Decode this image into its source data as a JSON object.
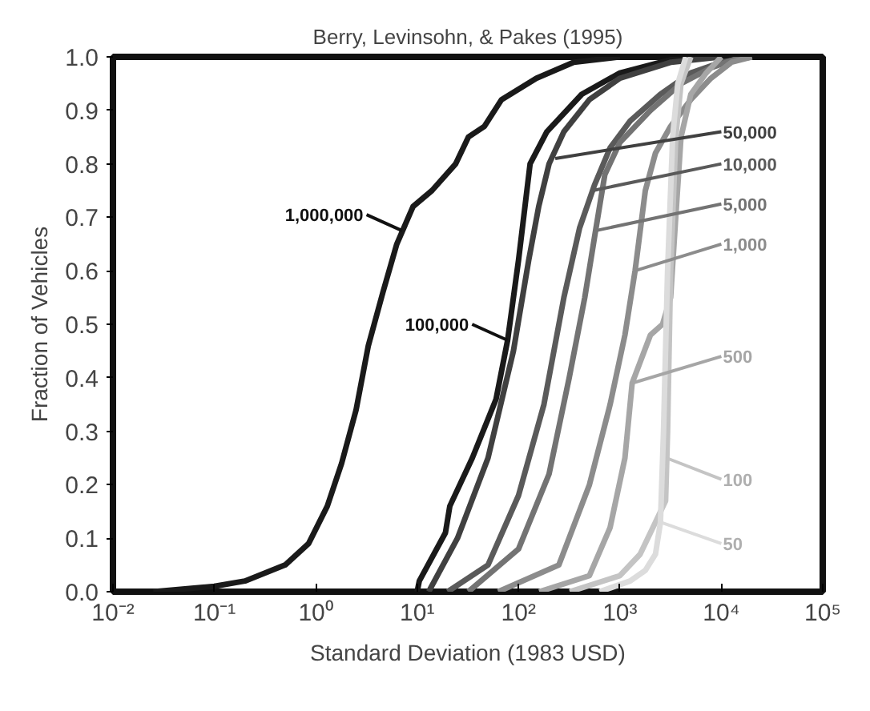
{
  "chart_data": {
    "type": "line",
    "title": "Berry, Levinsohn, & Pakes (1995)",
    "xlabel": "Standard Deviation (1983 USD)",
    "ylabel": "Fraction of Vehicles",
    "log": "x",
    "grid": false,
    "marker": "none",
    "line_style": "solid",
    "xlim": [
      0.01,
      100000
    ],
    "ylim": [
      0,
      1
    ],
    "xticks": [
      {
        "value": 0.01,
        "label": "10⁻²"
      },
      {
        "value": 0.1,
        "label": "10⁻¹"
      },
      {
        "value": 1,
        "label": "10⁰"
      },
      {
        "value": 10,
        "label": "10¹"
      },
      {
        "value": 100,
        "label": "10²"
      },
      {
        "value": 1000,
        "label": "10³"
      },
      {
        "value": 10000,
        "label": "10⁴"
      },
      {
        "value": 100000,
        "label": "10⁵"
      }
    ],
    "yticks": [
      {
        "value": 0,
        "label": "0.0"
      },
      {
        "value": 0.1,
        "label": "0.1"
      },
      {
        "value": 0.2,
        "label": "0.2"
      },
      {
        "value": 0.3,
        "label": "0.3"
      },
      {
        "value": 0.4,
        "label": "0.4"
      },
      {
        "value": 0.5,
        "label": "0.5"
      },
      {
        "value": 0.6,
        "label": "0.6"
      },
      {
        "value": 0.7,
        "label": "0.7"
      },
      {
        "value": 0.8,
        "label": "0.8"
      },
      {
        "value": 0.9,
        "label": "0.9"
      },
      {
        "value": 1,
        "label": "1.0"
      }
    ],
    "series": [
      {
        "color": "#1a1a1a",
        "x": [
          0.025,
          0.1,
          0.2,
          0.5,
          0.85,
          1.3,
          1.8,
          2.5,
          3.3,
          4.6,
          6.3,
          9.1,
          14,
          24,
          32,
          46,
          68,
          150,
          350,
          1000
        ],
        "values": [
          0,
          0.01,
          0.02,
          0.05,
          0.09,
          0.16,
          0.24,
          0.34,
          0.46,
          0.56,
          0.65,
          0.72,
          0.75,
          0.8,
          0.85,
          0.87,
          0.92,
          0.96,
          0.99,
          1.0
        ]
      },
      {
        "color": "#1a1a1a",
        "x": [
          10,
          10.5,
          19,
          21,
          35,
          60,
          78,
          100,
          130,
          190,
          420,
          1000,
          3200,
          9100
        ],
        "values": [
          0,
          0.02,
          0.11,
          0.16,
          0.25,
          0.36,
          0.47,
          0.62,
          0.8,
          0.86,
          0.93,
          0.97,
          0.995,
          1.0
        ]
      },
      {
        "color": "#404040",
        "x": [
          13,
          25,
          50,
          89,
          126,
          158,
          200,
          280,
          500,
          1000,
          3200,
          10000
        ],
        "values": [
          0,
          0.1,
          0.25,
          0.45,
          0.62,
          0.72,
          0.8,
          0.86,
          0.92,
          0.96,
          0.99,
          1.0
        ]
      },
      {
        "color": "#5a5a5a",
        "x": [
          20,
          50,
          100,
          178,
          280,
          400,
          560,
          800,
          1260,
          2500,
          5000,
          10000,
          20000
        ],
        "values": [
          0,
          0.05,
          0.18,
          0.35,
          0.55,
          0.68,
          0.76,
          0.83,
          0.88,
          0.93,
          0.97,
          0.99,
          1.0
        ]
      },
      {
        "color": "#737373",
        "x": [
          32,
          100,
          200,
          316,
          450,
          575,
          710,
          1000,
          2000,
          4000,
          8000,
          16000
        ],
        "values": [
          0,
          0.08,
          0.22,
          0.4,
          0.55,
          0.675,
          0.78,
          0.84,
          0.9,
          0.95,
          0.98,
          1.0
        ]
      },
      {
        "color": "#8c8c8c",
        "x": [
          63,
          250,
          500,
          800,
          1120,
          1410,
          1780,
          2240,
          3160,
          5000,
          7900,
          12600,
          20000
        ],
        "values": [
          0,
          0.05,
          0.2,
          0.35,
          0.48,
          0.6,
          0.75,
          0.82,
          0.87,
          0.92,
          0.96,
          0.99,
          1.0
        ]
      },
      {
        "color": "#a6a6a6",
        "x": [
          160,
          500,
          800,
          1120,
          1320,
          2000,
          2630,
          3160,
          3550,
          4000,
          5000,
          7100,
          10000
        ],
        "values": [
          0,
          0.03,
          0.12,
          0.25,
          0.39,
          0.48,
          0.5,
          0.55,
          0.7,
          0.85,
          0.93,
          0.97,
          1.0
        ]
      },
      {
        "color": "#c4c4c4",
        "x": [
          320,
          1000,
          1580,
          2240,
          2820,
          2950,
          3160,
          3550,
          4000,
          5000
        ],
        "values": [
          0,
          0.03,
          0.07,
          0.13,
          0.17,
          0.3,
          0.6,
          0.85,
          0.95,
          1.0
        ]
      },
      {
        "color": "#dcdcdc",
        "x": [
          630,
          1260,
          1780,
          2240,
          2510,
          2690,
          2950,
          3310,
          3720,
          4470
        ],
        "values": [
          0,
          0.02,
          0.04,
          0.07,
          0.13,
          0.3,
          0.6,
          0.85,
          0.95,
          1.0
        ]
      }
    ],
    "annotations": [
      {
        "text": "1,000,000",
        "x": 7.1,
        "y": 0.675
      },
      {
        "text": "100,000",
        "x": 78,
        "y": 0.47
      },
      {
        "text": "50,000",
        "x": 230,
        "y": 0.81
      },
      {
        "text": "10,000",
        "x": 540,
        "y": 0.75
      },
      {
        "text": "5,000",
        "x": 575,
        "y": 0.675
      },
      {
        "text": "1,000",
        "x": 1410,
        "y": 0.6
      },
      {
        "text": "500",
        "x": 1320,
        "y": 0.39
      },
      {
        "text": "100",
        "x": 2880,
        "y": 0.25
      },
      {
        "text": "50",
        "x": 2510,
        "y": 0.13
      }
    ]
  }
}
